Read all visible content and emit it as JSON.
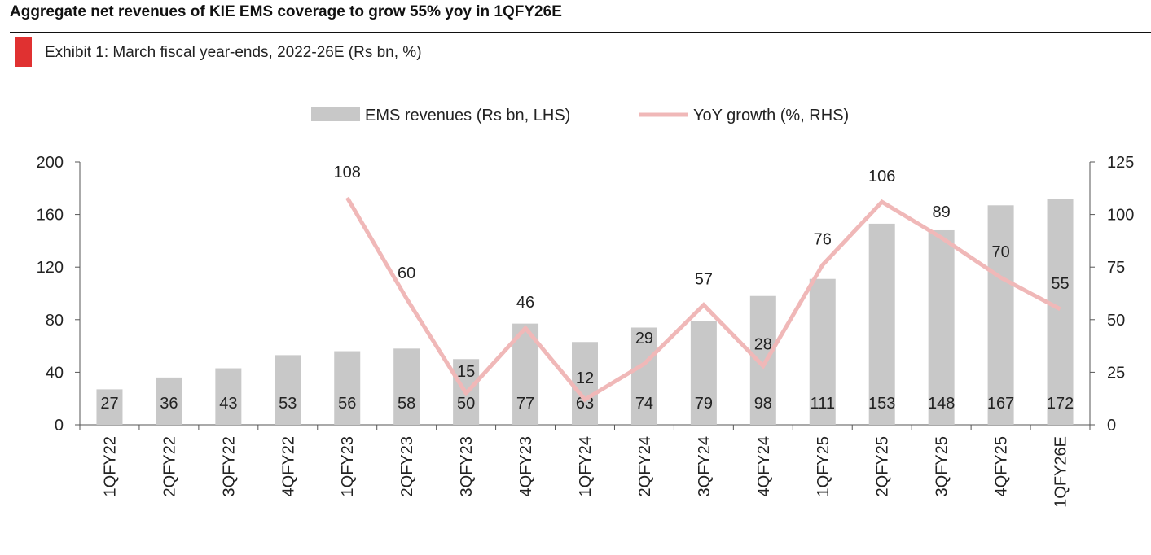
{
  "header": {
    "title": "Aggregate net revenues of KIE EMS coverage to grow 55% yoy in 1QFY26E",
    "subtitle": "Exhibit 1: March fiscal year-ends, 2022-26E (Rs bn, %)"
  },
  "colors": {
    "bar": "#c8c8c8",
    "line": "#f0b8b8",
    "accent": "#e03131",
    "axis": "#555555",
    "text": "#222222"
  },
  "chart_data": {
    "type": "bar",
    "categories": [
      "1QFY22",
      "2QFY22",
      "3QFY22",
      "4QFY22",
      "1QFY23",
      "2QFY23",
      "3QFY23",
      "4QFY23",
      "1QFY24",
      "2QFY24",
      "3QFY24",
      "4QFY24",
      "1QFY25",
      "2QFY25",
      "3QFY25",
      "4QFY25",
      "1QFY26E"
    ],
    "series": [
      {
        "name": "EMS revenues (Rs bn, LHS)",
        "type": "bar",
        "axis": "left",
        "values": [
          27,
          36,
          43,
          53,
          56,
          58,
          50,
          77,
          63,
          74,
          79,
          98,
          111,
          153,
          148,
          167,
          172
        ]
      },
      {
        "name": "YoY growth (%, RHS)",
        "type": "line",
        "axis": "right",
        "values": [
          null,
          null,
          null,
          null,
          108,
          60,
          15,
          46,
          12,
          29,
          57,
          28,
          76,
          106,
          89,
          70,
          55
        ]
      }
    ],
    "y_left": {
      "range": [
        0,
        200
      ],
      "ticks": [
        0,
        40,
        80,
        120,
        160,
        200
      ]
    },
    "y_right": {
      "range": [
        0,
        125
      ],
      "ticks": [
        0,
        25,
        50,
        75,
        100,
        125
      ]
    },
    "legend_position": "top-center",
    "grid": false
  }
}
